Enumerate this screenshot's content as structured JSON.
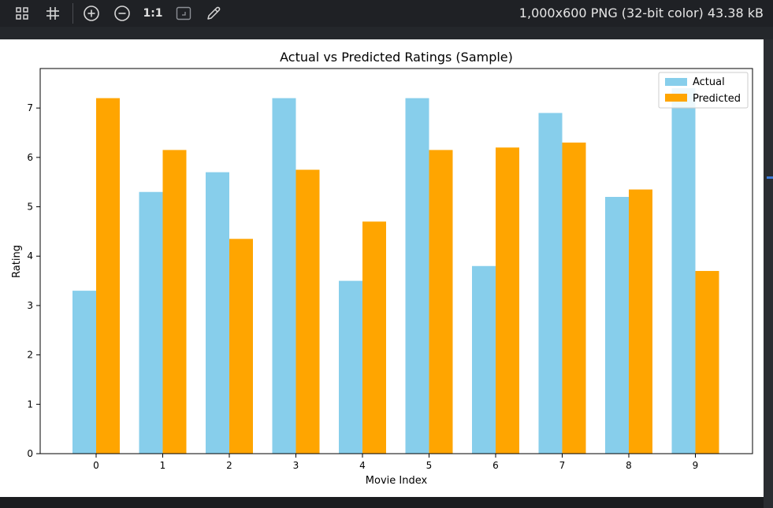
{
  "toolbar": {
    "icons": [
      "grid-view-icon",
      "crop-grid-icon",
      "zoom-in-icon",
      "zoom-out-icon",
      "fit-window-icon",
      "eyedropper-icon"
    ],
    "zoom_label": "1:1"
  },
  "file_info": "1,000x600 PNG (32-bit color) 43.38 kB",
  "colors": {
    "actual": "#87CEEB",
    "predicted": "#FFA500",
    "accent": "#3d7bd9"
  },
  "chart_data": {
    "type": "bar",
    "title": "Actual vs Predicted Ratings (Sample)",
    "xlabel": "Movie Index",
    "ylabel": "Rating",
    "categories": [
      "0",
      "1",
      "2",
      "3",
      "4",
      "5",
      "6",
      "7",
      "8",
      "9"
    ],
    "series": [
      {
        "name": "Actual",
        "values": [
          3.3,
          5.3,
          5.7,
          7.2,
          3.5,
          7.2,
          3.8,
          6.9,
          5.2,
          7.4
        ]
      },
      {
        "name": "Predicted",
        "values": [
          7.2,
          6.15,
          4.35,
          5.75,
          4.7,
          6.15,
          6.2,
          6.3,
          5.35,
          3.7
        ]
      }
    ],
    "ylim": [
      0,
      7.8
    ],
    "yticks": [
      "0",
      "1",
      "2",
      "3",
      "4",
      "5",
      "6",
      "7"
    ],
    "legend_position": "top-right",
    "grid": false
  }
}
